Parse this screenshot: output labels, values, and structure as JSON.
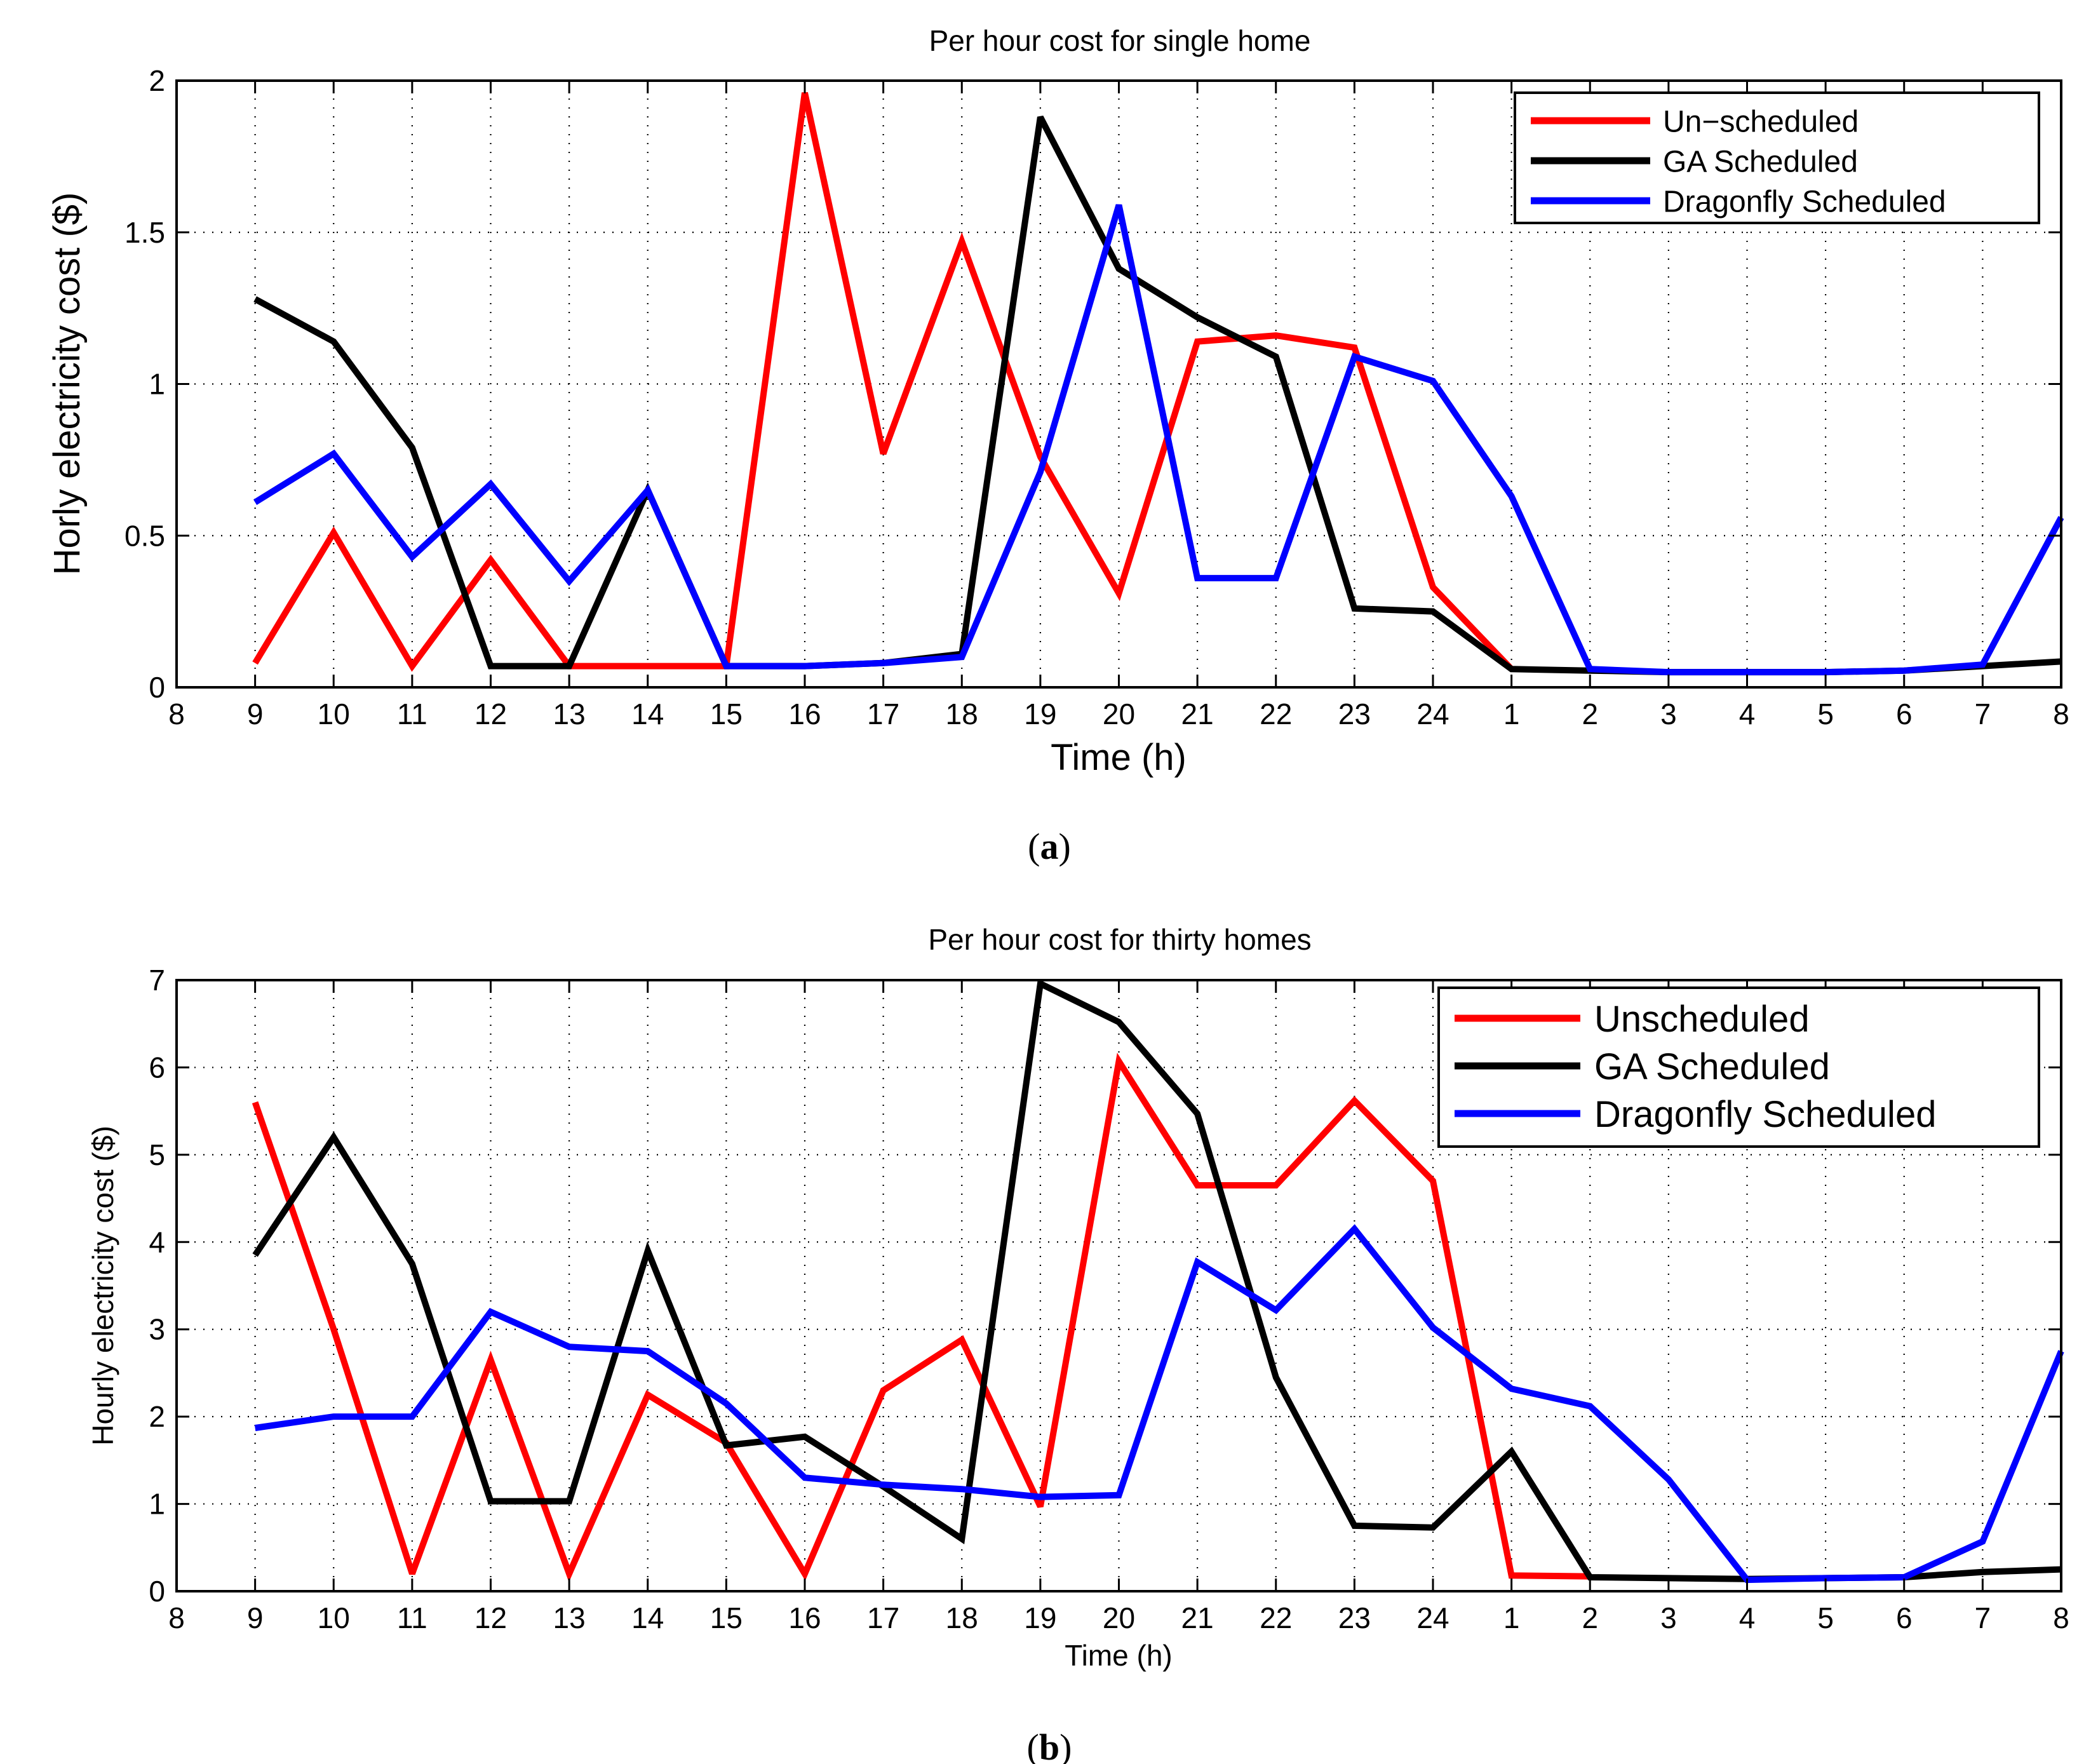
{
  "chart_data": [
    {
      "type": "line",
      "title": "Per hour cost for single home",
      "xlabel": "Time (h)",
      "ylabel": "Horly electricity cost ($)",
      "caption": "a",
      "x_tick_labels": [
        "8",
        "9",
        "10",
        "11",
        "12",
        "13",
        "14",
        "15",
        "16",
        "17",
        "18",
        "19",
        "20",
        "21",
        "22",
        "23",
        "24",
        "1",
        "2",
        "3",
        "4",
        "5",
        "6",
        "7",
        "8"
      ],
      "y_ticks": [
        0,
        0.5,
        1,
        1.5,
        2
      ],
      "y_tick_labels": [
        "0",
        "0.5",
        "1",
        "1.5",
        "2"
      ],
      "ylim": [
        0,
        2
      ],
      "grid": true,
      "legend_position": "top-right",
      "series": [
        {
          "name": "Un−scheduled",
          "color": "#ff0000",
          "start_index": 1,
          "values": [
            0.08,
            0.51,
            0.07,
            0.42,
            0.07,
            0.07,
            0.07,
            1.96,
            0.77,
            1.47,
            0.76,
            0.31,
            1.14,
            1.16,
            1.12,
            0.33,
            0.06
          ]
        },
        {
          "name": "GA Scheduled",
          "color": "#000000",
          "start_index": 1,
          "values": [
            1.28,
            1.14,
            0.79,
            0.07,
            0.07,
            0.65,
            0.07,
            0.07,
            0.08,
            0.11,
            1.88,
            1.38,
            1.22,
            1.09,
            0.26,
            0.25,
            0.06,
            0.055,
            0.05,
            0.05,
            0.05,
            0.055,
            0.07,
            0.085
          ]
        },
        {
          "name": "Dragonfly Scheduled",
          "color": "#0000ff",
          "start_index": 1,
          "values": [
            0.61,
            0.77,
            0.43,
            0.67,
            0.35,
            0.65,
            0.07,
            0.07,
            0.08,
            0.1,
            0.71,
            1.59,
            0.36,
            0.36,
            1.09,
            1.01,
            0.63,
            0.06,
            0.05,
            0.05,
            0.05,
            0.055,
            0.075,
            0.56
          ]
        }
      ]
    },
    {
      "type": "line",
      "title": "Per hour cost for thirty homes",
      "xlabel": "Time (h)",
      "ylabel": "Hourly electricity cost ($)",
      "caption": "b",
      "x_tick_labels": [
        "8",
        "9",
        "10",
        "11",
        "12",
        "13",
        "14",
        "15",
        "16",
        "17",
        "18",
        "19",
        "20",
        "21",
        "22",
        "23",
        "24",
        "1",
        "2",
        "3",
        "4",
        "5",
        "6",
        "7",
        "8"
      ],
      "y_ticks": [
        0,
        1,
        2,
        3,
        4,
        5,
        6,
        7
      ],
      "y_tick_labels": [
        "0",
        "1",
        "2",
        "3",
        "4",
        "5",
        "6",
        "7"
      ],
      "ylim": [
        0,
        7
      ],
      "grid": true,
      "legend_position": "top-right",
      "series": [
        {
          "name": "Unscheduled",
          "color": "#ff0000",
          "start_index": 1,
          "values": [
            5.6,
            3.0,
            0.2,
            2.65,
            0.2,
            2.25,
            1.7,
            0.2,
            2.3,
            2.88,
            0.97,
            6.07,
            4.65,
            4.65,
            5.62,
            4.7,
            0.18,
            0.17
          ]
        },
        {
          "name": "GA Scheduled",
          "color": "#000000",
          "start_index": 1,
          "values": [
            3.85,
            5.2,
            3.75,
            1.03,
            1.03,
            3.9,
            1.67,
            1.77,
            1.2,
            0.6,
            6.96,
            6.52,
            5.47,
            2.45,
            0.75,
            0.73,
            1.6,
            0.16,
            0.15,
            0.14,
            0.15,
            0.16,
            0.22,
            0.25
          ]
        },
        {
          "name": "Dragonfly Scheduled",
          "color": "#0000ff",
          "start_index": 1,
          "values": [
            1.87,
            2.0,
            2.0,
            3.2,
            2.8,
            2.75,
            2.15,
            1.3,
            1.22,
            1.17,
            1.08,
            1.1,
            3.77,
            3.22,
            4.15,
            3.02,
            2.32,
            2.12,
            1.28,
            0.13,
            0.15,
            0.16,
            0.57,
            2.75
          ]
        }
      ]
    }
  ]
}
